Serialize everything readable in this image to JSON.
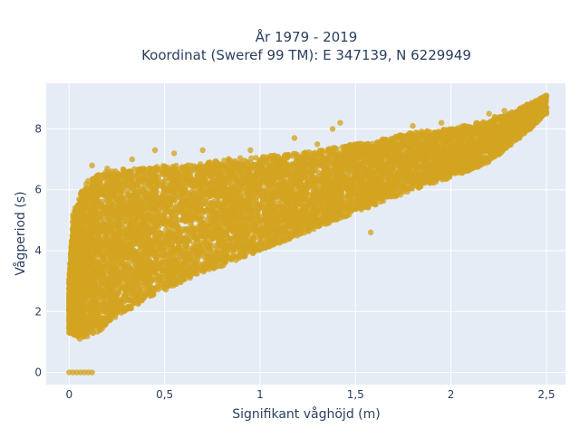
{
  "chart_data": {
    "type": "scatter",
    "title_line1": "År 1979 - 2019",
    "title_line2": "Koordinat (Sweref 99 TM): E 347139, N 6229949",
    "xlabel": "Signifikant våghöjd (m)",
    "ylabel": "Vågperiod (s)",
    "xlim": [
      -0.12,
      2.6
    ],
    "ylim": [
      -0.4,
      9.5
    ],
    "x_ticks": [
      0,
      0.5,
      1,
      1.5,
      2,
      2.5
    ],
    "x_tick_labels": [
      "0",
      "0,5",
      "1",
      "1,5",
      "2",
      "2,5"
    ],
    "y_ticks": [
      0,
      2,
      4,
      6,
      8
    ],
    "y_tick_labels": [
      "0",
      "2",
      "4",
      "6",
      "8"
    ],
    "grid": true,
    "colors": {
      "marker": "#d4a421",
      "plot_bg": "#e5ecf6",
      "grid": "#ffffff",
      "text": "#2a3f5f"
    },
    "envelope": {
      "x": [
        0.0,
        0.02,
        0.05,
        0.1,
        0.15,
        0.2,
        0.3,
        0.4,
        0.5,
        0.6,
        0.7,
        0.8,
        1.0,
        1.2,
        1.4,
        1.6,
        1.8,
        2.0,
        2.2,
        2.3,
        2.4,
        2.5
      ],
      "y_low": [
        1.3,
        1.2,
        1.1,
        1.1,
        1.3,
        1.6,
        2.0,
        2.4,
        2.7,
        3.0,
        3.3,
        3.5,
        4.0,
        4.5,
        5.0,
        5.5,
        6.0,
        6.4,
        6.9,
        7.4,
        7.9,
        8.5
      ],
      "y_high": [
        3.0,
        5.2,
        5.8,
        6.3,
        6.5,
        6.6,
        6.7,
        6.7,
        6.8,
        6.8,
        6.9,
        7.0,
        7.1,
        7.2,
        7.4,
        7.6,
        7.9,
        8.0,
        8.3,
        8.5,
        8.8,
        9.1
      ]
    },
    "zero_points": {
      "x": [
        0.0,
        0.02,
        0.04,
        0.06,
        0.08,
        0.1,
        0.12
      ],
      "y": [
        0,
        0,
        0,
        0,
        0,
        0,
        0
      ]
    },
    "outliers": {
      "x": [
        0.12,
        0.2,
        0.33,
        0.45,
        0.55,
        0.7,
        0.95,
        1.18,
        1.3,
        1.38,
        1.42,
        1.58,
        1.8,
        1.95,
        2.2,
        2.23,
        2.28,
        2.4,
        2.47,
        2.5,
        0.02,
        0.03,
        0.05
      ],
      "y": [
        6.8,
        6.7,
        7.0,
        7.3,
        7.2,
        7.3,
        7.3,
        7.7,
        7.5,
        8.0,
        8.2,
        4.6,
        8.1,
        8.2,
        8.5,
        8.4,
        8.6,
        8.8,
        9.0,
        9.1,
        4.3,
        2.8,
        4.9
      ]
    },
    "n_points": 9000
  }
}
